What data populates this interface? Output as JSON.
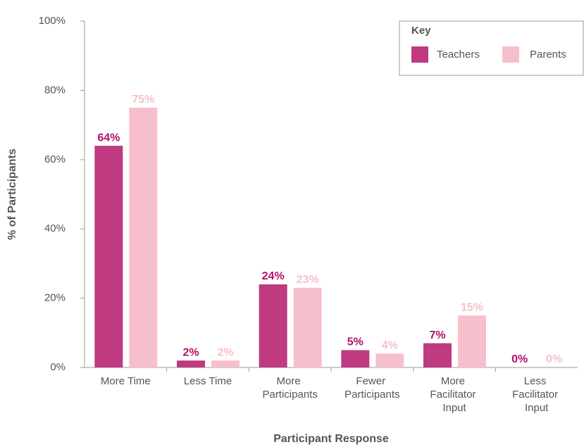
{
  "chart_data": {
    "type": "bar",
    "x_label": "Participant Response",
    "y_label": "% of Participants",
    "categories": [
      "More Time",
      "Less Time",
      "More Participants",
      "Fewer Participants",
      "More Facilitator Input",
      "Less Facilitator Input"
    ],
    "series": [
      {
        "name": "Teachers",
        "color": "#bf3a80",
        "label_color": "#b0106a",
        "values": [
          64,
          2,
          24,
          5,
          7,
          0
        ],
        "value_labels": [
          "64%",
          "2%",
          "24%",
          "5%",
          "7%",
          "0%"
        ]
      },
      {
        "name": "Parents",
        "color": "#f7bfcb",
        "label_color": "#f7bfcb",
        "values": [
          75,
          2,
          23,
          4,
          15,
          0
        ],
        "value_labels": [
          "75%",
          "2%",
          "23%",
          "4%",
          "15%",
          "0%"
        ]
      }
    ],
    "legend_title": "Key",
    "legend_position": "upper right",
    "ylim": [
      0,
      100
    ],
    "yticks": [
      {
        "value": 0,
        "label": "0%"
      },
      {
        "value": 20,
        "label": "20%"
      },
      {
        "value": 40,
        "label": "40%"
      },
      {
        "value": 60,
        "label": "60%"
      },
      {
        "value": 80,
        "label": "80%"
      },
      {
        "value": 100,
        "label": "100%"
      }
    ],
    "grid": false
  }
}
